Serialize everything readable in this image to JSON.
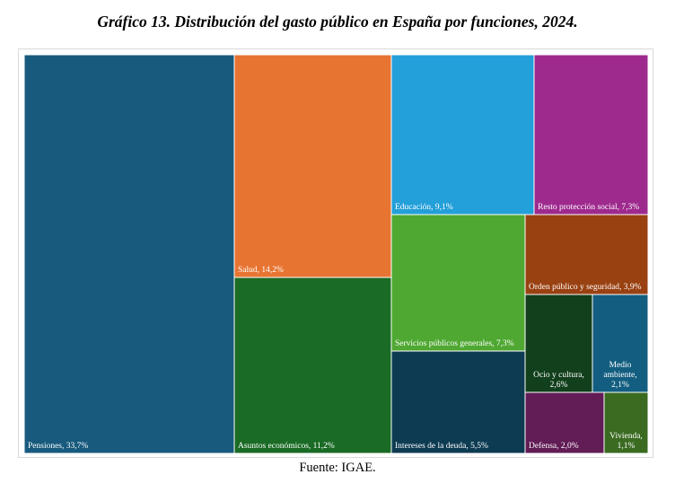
{
  "title": "Gráfico 13. Distribución del gasto público en España por funciones, 2024.",
  "source": "Fuente: IGAE.",
  "chart_data": {
    "type": "treemap",
    "title": "Gráfico 13. Distribución del gasto público en España por funciones, 2024.",
    "unit": "%",
    "categories": [
      {
        "id": "pensiones",
        "name": "Pensiones",
        "value": 33.7,
        "label": [
          "Pensiones, 33,7%"
        ],
        "color": "#175a7d"
      },
      {
        "id": "salud",
        "name": "Salud",
        "value": 14.2,
        "label": [
          "Salud, 14,2%"
        ],
        "color": "#e87432"
      },
      {
        "id": "asuntos",
        "name": "Asuntos económicos",
        "value": 11.2,
        "label": [
          "Asuntos económicos, 11,2%"
        ],
        "color": "#1a6b25"
      },
      {
        "id": "educacion",
        "name": "Educación",
        "value": 9.1,
        "label": [
          "Educación, 9,1%"
        ],
        "color": "#239fd9"
      },
      {
        "id": "resto",
        "name": "Resto protección social",
        "value": 7.3,
        "label": [
          "Resto protección social, 7,3%"
        ],
        "color": "#9e2a8e"
      },
      {
        "id": "servicios",
        "name": "Servicios públicos generales",
        "value": 7.3,
        "label": [
          "Servicios públicos generales, 7,3%"
        ],
        "color": "#4fa832"
      },
      {
        "id": "intereses",
        "name": "Intereses de la deuda",
        "value": 5.5,
        "label": [
          "Intereses de la deuda, 5,5%"
        ],
        "color": "#0d3b52"
      },
      {
        "id": "orden",
        "name": "Orden público y seguridad",
        "value": 3.9,
        "label": [
          "Orden público y seguridad, 3,9%"
        ],
        "color": "#9a4112"
      },
      {
        "id": "ocio",
        "name": "Ocio y cultura",
        "value": 2.6,
        "label": [
          "Ocio y cultura,",
          "2,6%"
        ],
        "color": "#123f1c"
      },
      {
        "id": "medio",
        "name": "Medio ambiente",
        "value": 2.1,
        "label": [
          "Medio",
          "ambiente,",
          "2,1%"
        ],
        "color": "#135e80"
      },
      {
        "id": "defensa",
        "name": "Defensa",
        "value": 2.0,
        "label": [
          "Defensa, 2,0%"
        ],
        "color": "#621c56"
      },
      {
        "id": "vivienda",
        "name": "Vivienda",
        "value": 1.1,
        "label": [
          "Vivienda,",
          "1,1%"
        ],
        "color": "#3a6b21"
      }
    ]
  }
}
